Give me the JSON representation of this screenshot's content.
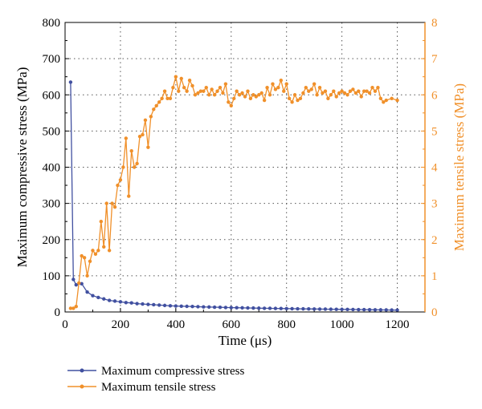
{
  "colors": {
    "compressive": "#4150a0",
    "tensile": "#f0902a"
  },
  "chart_data": {
    "type": "line",
    "grid": true,
    "legend_placement": "bottom-left",
    "xlabel": "Time (μs)",
    "ylabel_left": "Maximum compressive stress (MPa)",
    "ylabel_right": "Maximum tensile stress (MPa)",
    "xlim": [
      0,
      1300
    ],
    "ylim_left": [
      0,
      800
    ],
    "ylim_right": [
      0,
      8
    ],
    "x_ticks": [
      "0",
      "200",
      "400",
      "600",
      "800",
      "1000",
      "1200"
    ],
    "y_ticks_left": [
      "0",
      "100",
      "200",
      "300",
      "400",
      "500",
      "600",
      "700",
      "800"
    ],
    "y_ticks_right": [
      "0",
      "1",
      "2",
      "3",
      "4",
      "5",
      "6",
      "7",
      "8"
    ],
    "series": [
      {
        "name": "Maximum compressive stress",
        "axis": "left",
        "x": [
          20,
          30,
          40,
          60,
          80,
          100,
          120,
          140,
          160,
          180,
          200,
          220,
          240,
          260,
          280,
          300,
          320,
          340,
          360,
          380,
          400,
          420,
          440,
          460,
          480,
          500,
          520,
          540,
          560,
          580,
          600,
          620,
          640,
          660,
          680,
          700,
          720,
          740,
          760,
          780,
          800,
          820,
          840,
          860,
          880,
          900,
          920,
          940,
          960,
          980,
          1000,
          1020,
          1040,
          1060,
          1080,
          1100,
          1120,
          1140,
          1160,
          1180,
          1200
        ],
        "y": [
          635,
          90,
          75,
          78,
          55,
          45,
          40,
          36,
          32,
          30,
          28,
          26,
          25,
          23,
          22,
          21,
          20,
          19,
          18,
          17,
          16.5,
          16,
          15.5,
          15,
          14.5,
          14,
          13.6,
          13.2,
          12.8,
          12.4,
          12,
          11.7,
          11.4,
          11.1,
          10.8,
          10.5,
          10.2,
          10,
          9.7,
          9.5,
          9.2,
          9,
          8.8,
          8.6,
          8.4,
          8.2,
          8,
          7.8,
          7.6,
          7.4,
          7.2,
          7,
          6.8,
          6.6,
          6.4,
          6.2,
          6,
          5.8,
          5.6,
          5.4,
          5.2
        ]
      },
      {
        "name": "Maximum tensile stress",
        "axis": "right",
        "x": [
          20,
          30,
          40,
          50,
          60,
          70,
          80,
          90,
          100,
          110,
          120,
          130,
          140,
          150,
          160,
          170,
          180,
          190,
          200,
          210,
          220,
          230,
          240,
          250,
          260,
          270,
          280,
          290,
          300,
          310,
          320,
          330,
          340,
          350,
          360,
          370,
          380,
          390,
          400,
          410,
          420,
          430,
          440,
          450,
          460,
          470,
          480,
          490,
          500,
          510,
          520,
          530,
          540,
          550,
          560,
          570,
          580,
          590,
          600,
          610,
          620,
          630,
          640,
          650,
          660,
          670,
          680,
          690,
          700,
          710,
          720,
          730,
          740,
          750,
          760,
          770,
          780,
          790,
          800,
          810,
          820,
          830,
          840,
          850,
          860,
          870,
          880,
          890,
          900,
          910,
          920,
          930,
          940,
          950,
          960,
          970,
          980,
          990,
          1000,
          1010,
          1020,
          1030,
          1040,
          1050,
          1060,
          1070,
          1080,
          1090,
          1100,
          1110,
          1120,
          1130,
          1140,
          1150,
          1160,
          1180,
          1200
        ],
        "y": [
          0.1,
          0.1,
          0.15,
          0.8,
          1.55,
          1.5,
          1.0,
          1.4,
          1.7,
          1.6,
          1.7,
          2.5,
          1.8,
          3.0,
          1.7,
          3.0,
          2.9,
          3.5,
          3.65,
          4.0,
          4.8,
          3.2,
          4.45,
          4.0,
          4.1,
          4.85,
          4.9,
          5.3,
          4.55,
          5.4,
          5.6,
          5.7,
          5.8,
          5.9,
          6.1,
          5.9,
          5.9,
          6.2,
          6.5,
          6.1,
          6.45,
          6.2,
          6.1,
          6.4,
          6.25,
          6.0,
          6.05,
          6.1,
          6.1,
          6.2,
          6.0,
          6.15,
          6.0,
          6.1,
          6.2,
          6.05,
          6.3,
          5.8,
          5.7,
          5.9,
          6.1,
          6.0,
          6.05,
          5.95,
          6.1,
          5.9,
          6.0,
          5.95,
          6.0,
          6.05,
          5.85,
          6.2,
          6.0,
          6.3,
          6.15,
          6.2,
          6.4,
          6.1,
          6.3,
          5.9,
          5.8,
          6.0,
          5.85,
          5.9,
          6.05,
          6.2,
          6.1,
          6.15,
          6.3,
          6.0,
          6.2,
          6.05,
          6.1,
          5.9,
          6.0,
          6.1,
          5.95,
          6.05,
          6.1,
          6.05,
          6.0,
          6.1,
          6.15,
          6.05,
          6.1,
          5.95,
          6.1,
          6.1,
          6.05,
          6.2,
          6.1,
          6.2,
          5.9,
          5.8,
          5.85,
          5.9,
          5.85
        ]
      }
    ]
  }
}
